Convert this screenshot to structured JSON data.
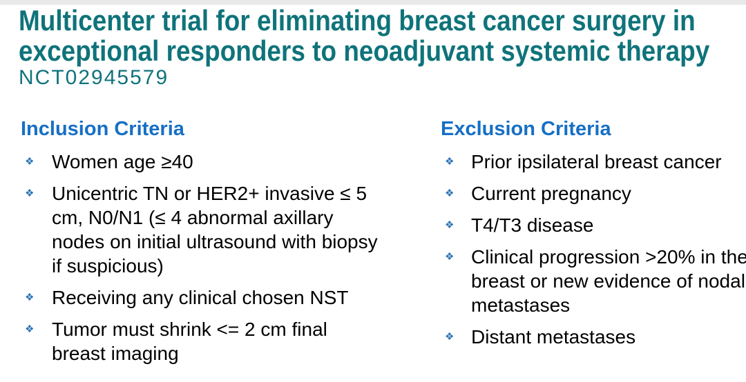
{
  "slide": {
    "title_lines": [
      "Multicenter trial for eliminating breast cancer surgery in",
      "exceptional responders to neoadjuvant systemic therapy"
    ],
    "trial_id": "NCT02945579",
    "bullet_glyph": "❖",
    "colors": {
      "title_teal": "#0F737A",
      "heading_blue": "#166FC5",
      "bullet_blue": "#2E74B5",
      "body_text": "#000000",
      "top_bar": "#E9E9E9",
      "background": "#FFFFFF"
    }
  },
  "inclusion": {
    "heading": "Inclusion Criteria",
    "items": [
      "Women age ≥40",
      "Unicentric TN or HER2+ invasive ≤ 5 cm, N0/N1 (≤ 4 abnormal axillary nodes on initial ultrasound with biopsy if suspicious)",
      "Receiving any clinical chosen NST",
      "Tumor must shrink <= 2 cm final breast imaging"
    ]
  },
  "exclusion": {
    "heading": "Exclusion Criteria",
    "items": [
      "Prior ipsilateral breast cancer",
      "Current pregnancy",
      "T4/T3 disease",
      "Clinical progression >20% in the breast or new evidence of nodal metastases",
      "Distant metastases"
    ]
  }
}
